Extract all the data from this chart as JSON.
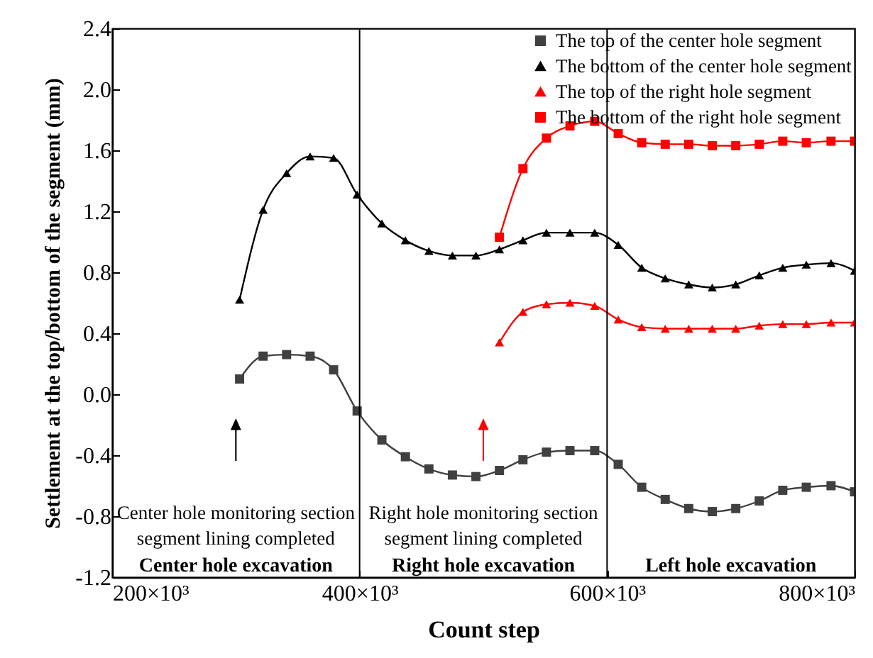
{
  "chart_data": {
    "type": "line",
    "xlabel": "Count step",
    "ylabel": "Settlement at the top/bottom of the segment (mm)",
    "x": [
      303000,
      322000,
      341000,
      360000,
      379000,
      398000,
      418000,
      437000,
      456000,
      475000,
      494000,
      513000,
      532000,
      551000,
      570000,
      590000,
      609000,
      628000,
      647000,
      666000,
      685000,
      704000,
      723000,
      742000,
      761000,
      781000,
      800000
    ],
    "series": [
      {
        "name": "The top of the center hole segment",
        "color": "#404040",
        "marker": "square",
        "values": [
          0.1,
          0.25,
          0.26,
          0.25,
          0.16,
          -0.11,
          -0.3,
          -0.41,
          -0.49,
          -0.53,
          -0.54,
          -0.5,
          -0.43,
          -0.38,
          -0.37,
          -0.37,
          -0.46,
          -0.61,
          -0.69,
          -0.75,
          -0.77,
          -0.75,
          -0.7,
          -0.63,
          -0.61,
          -0.6,
          -0.64
        ]
      },
      {
        "name": "The bottom of the center hole segment",
        "color": "#000000",
        "marker": "triangle",
        "values": [
          0.62,
          1.21,
          1.45,
          1.56,
          1.55,
          1.31,
          1.12,
          1.01,
          0.94,
          0.91,
          0.91,
          0.95,
          1.01,
          1.06,
          1.06,
          1.06,
          0.98,
          0.83,
          0.76,
          0.72,
          0.7,
          0.72,
          0.78,
          0.83,
          0.85,
          0.86,
          0.81
        ]
      },
      {
        "name": "The top of the right hole segment",
        "color": "#ff0000",
        "marker": "triangle",
        "x": [
          513000,
          532000,
          551000,
          570000,
          590000,
          609000,
          628000,
          647000,
          666000,
          685000,
          704000,
          723000,
          742000,
          761000,
          781000,
          800000
        ],
        "values": [
          0.34,
          0.54,
          0.59,
          0.6,
          0.58,
          0.49,
          0.44,
          0.43,
          0.43,
          0.43,
          0.43,
          0.45,
          0.46,
          0.46,
          0.47,
          0.47
        ]
      },
      {
        "name": "The bottom of the right hole segment",
        "color": "#ff0000",
        "marker": "square",
        "x": [
          513000,
          532000,
          551000,
          570000,
          590000,
          609000,
          628000,
          647000,
          666000,
          685000,
          704000,
          723000,
          742000,
          761000,
          781000,
          800000
        ],
        "values": [
          1.03,
          1.48,
          1.68,
          1.76,
          1.79,
          1.71,
          1.65,
          1.64,
          1.64,
          1.63,
          1.63,
          1.64,
          1.66,
          1.65,
          1.66,
          1.66
        ]
      }
    ],
    "xlim": [
      200000,
      800000
    ],
    "xticks": [
      {
        "value": 200000,
        "label": "200×10³"
      },
      {
        "value": 400000,
        "label": "400×10³"
      },
      {
        "value": 600000,
        "label": "600×10³"
      },
      {
        "value": 800000,
        "label": "800×10³"
      }
    ],
    "ylim": [
      -1.2,
      2.4
    ],
    "yticks": [
      -1.2,
      -0.8,
      -0.4,
      {
        "value": 0,
        "label": "0.0"
      },
      0.4,
      0.8,
      1.2,
      1.6,
      {
        "value": 2,
        "label": "2.0"
      },
      2.4
    ],
    "ref_lines": [
      {
        "axis": "x",
        "value": 400000,
        "color": "#000000"
      },
      {
        "axis": "x",
        "value": 600000,
        "color": "#000000"
      }
    ],
    "annotations": [
      "Center hole monitoring section\nsegment lining completed",
      "Right hole monitoring section\nsegment lining completed",
      "Center hole excavation",
      "Right hole excavation",
      "Left hole excavation"
    ],
    "legend": "top right",
    "grid": false,
    "line_style": "solid"
  }
}
